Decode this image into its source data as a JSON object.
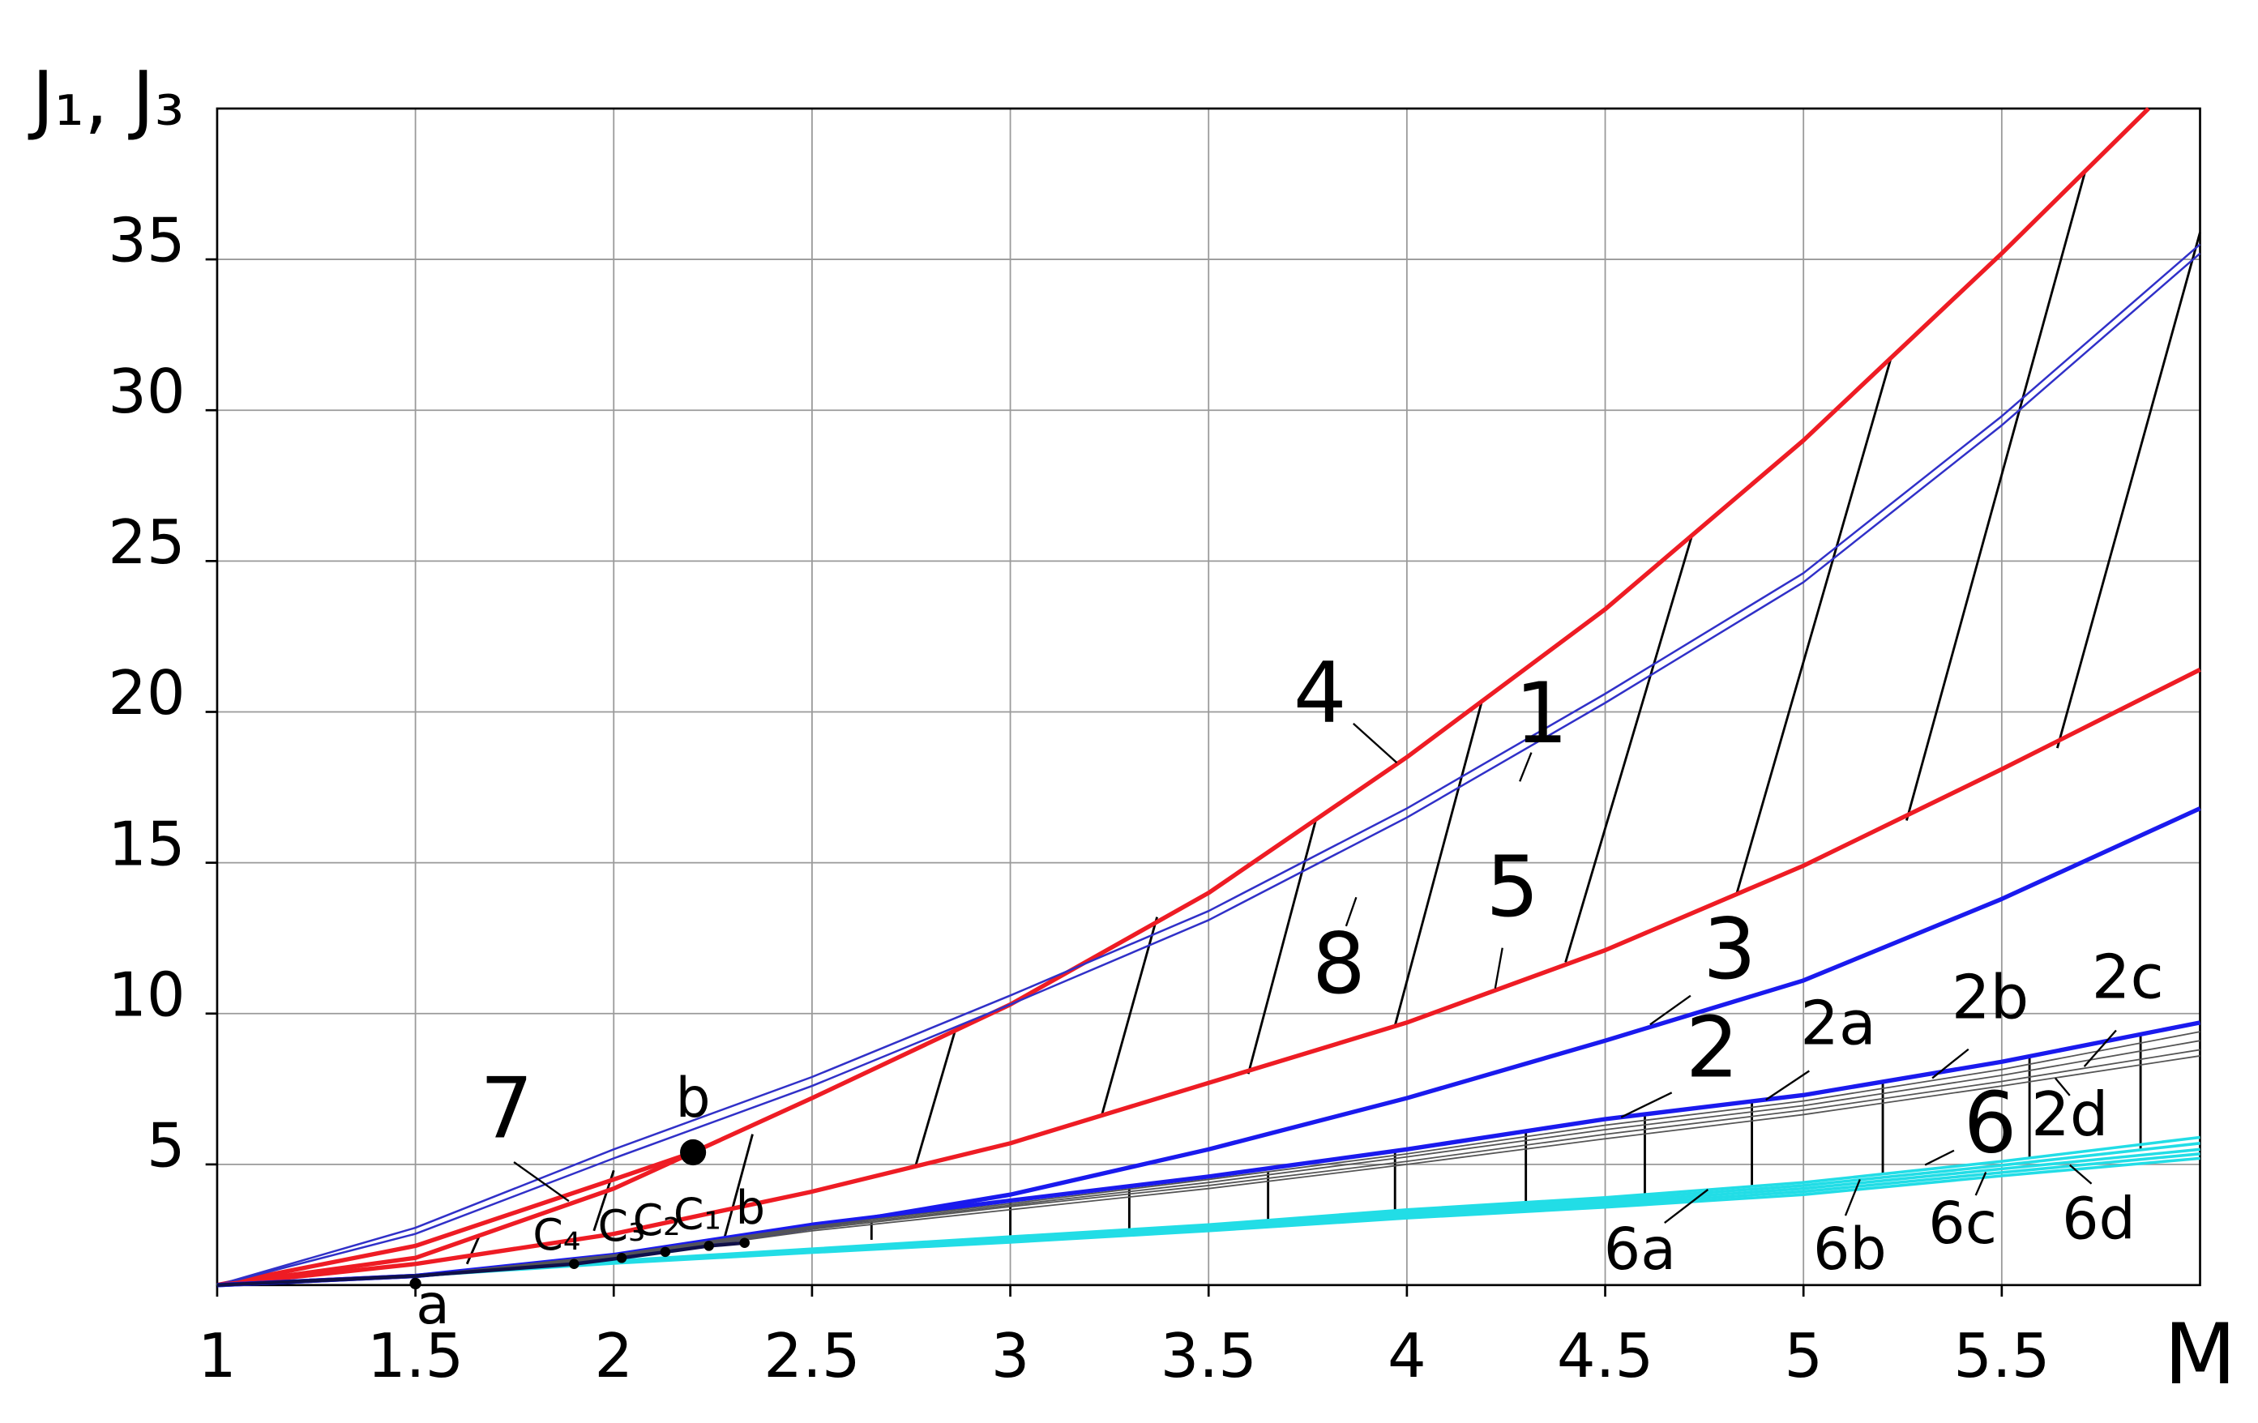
{
  "chart_data": {
    "type": "line",
    "x_label": "M",
    "y_label": "J₁, J₃",
    "xlim": [
      1,
      6
    ],
    "ylim": [
      1,
      40
    ],
    "xticks": [
      1,
      1.5,
      2,
      2.5,
      3,
      3.5,
      4,
      4.5,
      5,
      5.5
    ],
    "yticks": [
      5,
      10,
      15,
      20,
      25,
      30,
      35
    ],
    "grid": true,
    "series": [
      {
        "name": "4",
        "color": "#ee1c24",
        "x": [
          1,
          1.5,
          2,
          2.2,
          2.5,
          3,
          3.5,
          4,
          4.5,
          5,
          5.5,
          5.87
        ],
        "values": [
          1,
          2.3,
          4.5,
          5.4,
          7.2,
          10.3,
          14.0,
          18.5,
          23.4,
          29.0,
          35.2,
          40
        ]
      },
      {
        "name": "7",
        "color": "#ee1c24",
        "x": [
          1,
          1.5,
          2,
          2.2
        ],
        "values": [
          1,
          1.9,
          4.2,
          5.4
        ]
      },
      {
        "name": "1",
        "color": "#3030c8",
        "x": [
          1,
          1.5,
          2,
          2.5,
          3,
          3.5,
          4,
          4.5,
          5,
          5.5,
          6
        ],
        "values": [
          1,
          2.9,
          5.5,
          7.9,
          10.6,
          13.4,
          16.8,
          20.6,
          24.6,
          29.8,
          35.5
        ]
      },
      {
        "name": "8",
        "color": "#3030c8",
        "x": [
          1,
          1.5,
          2,
          2.5,
          3,
          3.5,
          4,
          4.5,
          5,
          5.5,
          6
        ],
        "values": [
          1,
          2.7,
          5.2,
          7.6,
          10.3,
          13.1,
          16.5,
          20.3,
          24.3,
          29.5,
          35.2
        ]
      },
      {
        "name": "5",
        "color": "#ee1c24",
        "x": [
          1,
          1.5,
          2,
          2.5,
          3,
          3.5,
          4,
          4.5,
          5,
          5.5,
          6
        ],
        "values": [
          1,
          1.7,
          2.7,
          4.1,
          5.7,
          7.7,
          9.7,
          12.1,
          14.9,
          18.1,
          21.4
        ]
      },
      {
        "name": "3",
        "color": "#1a1aee",
        "x": [
          1,
          1.5,
          2,
          2.5,
          3,
          3.5,
          4,
          4.5,
          5,
          5.5,
          6
        ],
        "values": [
          1,
          1.3,
          1.9,
          2.9,
          4.0,
          5.5,
          7.2,
          9.1,
          11.1,
          13.8,
          16.8
        ]
      },
      {
        "name": "2",
        "color": "#1a1aee",
        "x": [
          1,
          1.5,
          2,
          2.5,
          3,
          3.5,
          4,
          4.5,
          5,
          5.5,
          6
        ],
        "values": [
          1,
          1.3,
          2.0,
          3.0,
          3.8,
          4.6,
          5.5,
          6.5,
          7.3,
          8.4,
          9.7
        ]
      },
      {
        "name": "2a",
        "color": "#555555",
        "x": [
          1,
          1.5,
          2,
          2.5,
          3,
          3.5,
          4,
          4.5,
          5,
          5.5,
          6
        ],
        "values": [
          1,
          1.3,
          2.0,
          2.95,
          3.7,
          4.5,
          5.35,
          6.3,
          7.1,
          8.15,
          9.4
        ]
      },
      {
        "name": "2b",
        "color": "#555555",
        "x": [
          1,
          1.5,
          2,
          2.5,
          3,
          3.5,
          4,
          4.5,
          5,
          5.5,
          6
        ],
        "values": [
          1,
          1.3,
          1.95,
          2.9,
          3.65,
          4.4,
          5.25,
          6.15,
          6.95,
          7.95,
          9.1
        ]
      },
      {
        "name": "2c",
        "color": "#555555",
        "x": [
          1,
          1.5,
          2,
          2.5,
          3,
          3.5,
          4,
          4.5,
          5,
          5.5,
          6
        ],
        "values": [
          1,
          1.3,
          1.95,
          2.85,
          3.6,
          4.3,
          5.1,
          6.0,
          6.8,
          7.75,
          8.8
        ]
      },
      {
        "name": "2d",
        "color": "#555555",
        "x": [
          1,
          1.5,
          2,
          2.5,
          3,
          3.5,
          4,
          4.5,
          5,
          5.5,
          6
        ],
        "values": [
          1,
          1.3,
          1.9,
          2.8,
          3.5,
          4.2,
          5.0,
          5.85,
          6.65,
          7.6,
          8.6
        ]
      },
      {
        "name": "6",
        "color": "#22dde6",
        "x": [
          1,
          1.5,
          2,
          2.5,
          3,
          3.5,
          4,
          4.5,
          5,
          5.5,
          6
        ],
        "values": [
          1,
          1.3,
          1.8,
          2.2,
          2.6,
          3.0,
          3.5,
          3.9,
          4.4,
          5.1,
          5.9
        ]
      },
      {
        "name": "6a",
        "color": "#22dde6",
        "x": [
          1,
          1.5,
          2,
          2.5,
          3,
          3.5,
          4,
          4.5,
          5,
          5.5,
          6
        ],
        "values": [
          1,
          1.3,
          1.78,
          2.17,
          2.55,
          2.95,
          3.42,
          3.82,
          4.3,
          4.97,
          5.7
        ]
      },
      {
        "name": "6b",
        "color": "#22dde6",
        "x": [
          1,
          1.5,
          2,
          2.5,
          3,
          3.5,
          4,
          4.5,
          5,
          5.5,
          6
        ],
        "values": [
          1,
          1.3,
          1.76,
          2.14,
          2.5,
          2.9,
          3.35,
          3.74,
          4.2,
          4.85,
          5.5
        ]
      },
      {
        "name": "6c",
        "color": "#22dde6",
        "x": [
          1,
          1.5,
          2,
          2.5,
          3,
          3.5,
          4,
          4.5,
          5,
          5.5,
          6
        ],
        "values": [
          1,
          1.3,
          1.74,
          2.11,
          2.46,
          2.85,
          3.28,
          3.66,
          4.1,
          4.73,
          5.35
        ]
      },
      {
        "name": "6d",
        "color": "#22dde6",
        "x": [
          1,
          1.5,
          2,
          2.5,
          3,
          3.5,
          4,
          4.5,
          5,
          5.5,
          6
        ],
        "values": [
          1,
          1.3,
          1.72,
          2.08,
          2.42,
          2.8,
          3.22,
          3.58,
          4.0,
          4.62,
          5.2
        ]
      },
      {
        "color": "#10104a",
        "x": [
          1,
          1.5,
          1.9,
          2.02,
          2.13,
          2.24,
          2.33
        ],
        "values": [
          1,
          1.3,
          1.7,
          1.9,
          2.1,
          2.3,
          2.4
        ]
      }
    ],
    "points": [
      {
        "label": "b",
        "x": 2.2,
        "y": 5.4
      },
      {
        "label": "a",
        "x": 1.5,
        "y": 1.05
      },
      {
        "label": "C₄",
        "x": 1.9,
        "y": 1.7
      },
      {
        "label": "C₃",
        "x": 2.02,
        "y": 1.9
      },
      {
        "label": "C₂",
        "x": 2.13,
        "y": 2.1
      },
      {
        "label": "C₁",
        "x": 2.24,
        "y": 2.3
      },
      {
        "label": "b",
        "x": 2.33,
        "y": 2.4
      }
    ],
    "tie_lines": [
      {
        "x": [
          1.63,
          1.66
        ],
        "y": [
          1.7,
          2.6
        ]
      },
      {
        "x": [
          1.95,
          2.0
        ],
        "y": [
          2.8,
          4.8
        ]
      },
      {
        "x": [
          2.28,
          2.35
        ],
        "y": [
          2.6,
          6.0
        ]
      },
      {
        "x": [
          2.76,
          2.86
        ],
        "y": [
          4.9,
          9.4
        ]
      },
      {
        "x": [
          3.23,
          3.37
        ],
        "y": [
          6.6,
          13.2
        ]
      },
      {
        "x": [
          3.6,
          3.77
        ],
        "y": [
          8.0,
          16.4
        ]
      },
      {
        "x": [
          3.97,
          4.19
        ],
        "y": [
          9.6,
          20.4
        ]
      },
      {
        "x": [
          4.4,
          4.72
        ],
        "y": [
          11.7,
          25.9
        ]
      },
      {
        "x": [
          4.83,
          5.22
        ],
        "y": [
          13.9,
          31.7
        ]
      },
      {
        "x": [
          5.26,
          5.71
        ],
        "y": [
          16.4,
          37.9
        ]
      },
      {
        "x": [
          5.64,
          6.0
        ],
        "y": [
          18.8,
          35.9
        ]
      },
      {
        "x": [
          2.65,
          2.65
        ],
        "y": [
          2.5,
          3.1
        ]
      },
      {
        "x": [
          3.0,
          3.0
        ],
        "y": [
          2.65,
          3.8
        ]
      },
      {
        "x": [
          3.3,
          3.3
        ],
        "y": [
          2.85,
          4.3
        ]
      },
      {
        "x": [
          3.65,
          3.65
        ],
        "y": [
          3.1,
          4.75
        ]
      },
      {
        "x": [
          3.97,
          3.97
        ],
        "y": [
          3.45,
          5.45
        ]
      },
      {
        "x": [
          4.3,
          4.3
        ],
        "y": [
          3.7,
          6.1
        ]
      },
      {
        "x": [
          4.6,
          4.6
        ],
        "y": [
          4.0,
          6.65
        ]
      },
      {
        "x": [
          4.87,
          4.87
        ],
        "y": [
          4.25,
          7.1
        ]
      },
      {
        "x": [
          5.2,
          5.2
        ],
        "y": [
          4.65,
          7.7
        ]
      },
      {
        "x": [
          5.57,
          5.57
        ],
        "y": [
          5.2,
          8.55
        ]
      },
      {
        "x": [
          5.85,
          5.85
        ],
        "y": [
          5.5,
          9.3
        ]
      }
    ]
  }
}
